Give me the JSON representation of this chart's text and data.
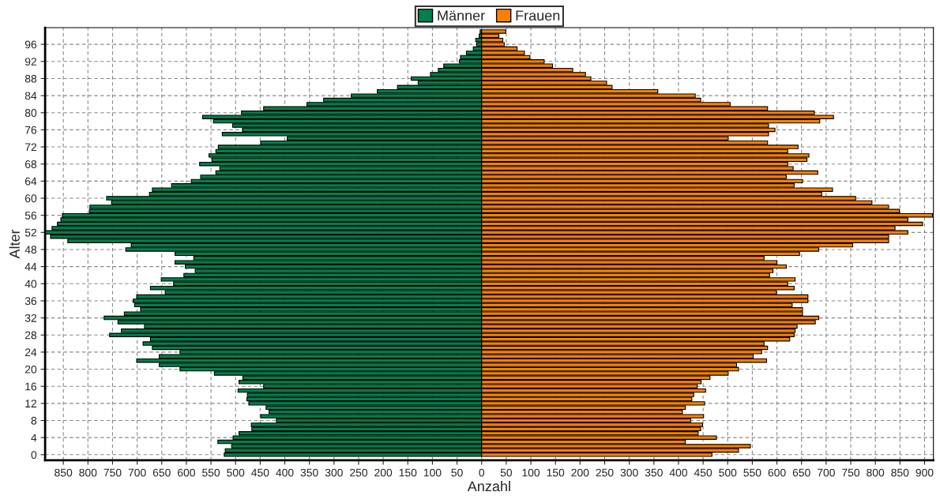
{
  "chart_data": {
    "type": "bar",
    "orientation": "horizontal",
    "xlabel": "Anzahl",
    "ylabel": "Alter",
    "x": [
      0,
      1,
      2,
      3,
      4,
      5,
      6,
      7,
      8,
      9,
      10,
      11,
      12,
      13,
      14,
      15,
      16,
      17,
      18,
      19,
      20,
      21,
      22,
      23,
      24,
      25,
      26,
      27,
      28,
      29,
      30,
      31,
      32,
      33,
      34,
      35,
      36,
      37,
      38,
      39,
      40,
      41,
      42,
      43,
      44,
      45,
      46,
      47,
      48,
      49,
      50,
      51,
      52,
      53,
      54,
      55,
      56,
      57,
      58,
      59,
      60,
      61,
      62,
      63,
      64,
      65,
      66,
      67,
      68,
      69,
      70,
      71,
      72,
      73,
      74,
      75,
      76,
      77,
      78,
      79,
      80,
      81,
      82,
      83,
      84,
      85,
      86,
      87,
      88,
      89,
      90,
      91,
      92,
      93,
      94,
      95,
      96,
      97,
      98,
      99
    ],
    "series": [
      {
        "name": "Männer",
        "color": "#00804a",
        "values": [
          -523,
          -521,
          -508,
          -536,
          -505,
          -493,
          -467,
          -468,
          -417,
          -449,
          -432,
          -438,
          -473,
          -477,
          -476,
          -495,
          -443,
          -493,
          -485,
          -543,
          -613,
          -655,
          -701,
          -655,
          -613,
          -669,
          -688,
          -673,
          -756,
          -732,
          -685,
          -739,
          -767,
          -726,
          -693,
          -705,
          -708,
          -701,
          -643,
          -673,
          -626,
          -651,
          -605,
          -582,
          -602,
          -623,
          -585,
          -623,
          -723,
          -712,
          -841,
          -876,
          -886,
          -873,
          -862,
          -855,
          -852,
          -797,
          -796,
          -752,
          -762,
          -675,
          -669,
          -630,
          -590,
          -571,
          -540,
          -532,
          -573,
          -548,
          -554,
          -540,
          -535,
          -449,
          -395,
          -527,
          -486,
          -506,
          -545,
          -567,
          -488,
          -443,
          -355,
          -321,
          -265,
          -212,
          -171,
          -129,
          -143,
          -104,
          -88,
          -77,
          -45,
          -43,
          -31,
          -17,
          -10,
          -12,
          -5,
          -3
        ]
      },
      {
        "name": "Frauen",
        "color": "#ff8000",
        "values": [
          468,
          522,
          546,
          414,
          477,
          440,
          445,
          449,
          425,
          451,
          408,
          414,
          453,
          427,
          431,
          455,
          438,
          446,
          464,
          501,
          522,
          518,
          579,
          552,
          569,
          581,
          574,
          626,
          635,
          637,
          641,
          678,
          685,
          652,
          652,
          631,
          663,
          663,
          599,
          635,
          622,
          637,
          585,
          592,
          619,
          600,
          574,
          646,
          685,
          754,
          827,
          827,
          866,
          840,
          896,
          866,
          916,
          849,
          827,
          793,
          760,
          691,
          713,
          635,
          652,
          619,
          683,
          633,
          622,
          661,
          665,
          622,
          643,
          581,
          501,
          583,
          596,
          583,
          687,
          715,
          676,
          581,
          505,
          445,
          434,
          358,
          265,
          254,
          222,
          211,
          185,
          144,
          127,
          98,
          87,
          72,
          46,
          43,
          35,
          49
        ]
      }
    ],
    "xlim": [
      -887,
      918
    ],
    "xticks": [
      {
        "value": -850,
        "label": "850"
      },
      {
        "value": -800,
        "label": "800"
      },
      {
        "value": -750,
        "label": "750"
      },
      {
        "value": -700,
        "label": "700"
      },
      {
        "value": -650,
        "label": "650"
      },
      {
        "value": -600,
        "label": "600"
      },
      {
        "value": -550,
        "label": "550"
      },
      {
        "value": -500,
        "label": "500"
      },
      {
        "value": -450,
        "label": "450"
      },
      {
        "value": -400,
        "label": "400"
      },
      {
        "value": -350,
        "label": "350"
      },
      {
        "value": -300,
        "label": "300"
      },
      {
        "value": -250,
        "label": "250"
      },
      {
        "value": -200,
        "label": "200"
      },
      {
        "value": -150,
        "label": "150"
      },
      {
        "value": -100,
        "label": "100"
      },
      {
        "value": -50,
        "label": "50"
      },
      0,
      50,
      100,
      150,
      200,
      250,
      300,
      350,
      400,
      450,
      500,
      550,
      600,
      650,
      700,
      750,
      800,
      850,
      900
    ],
    "ylim": [
      -1.3,
      99.9
    ],
    "yticks": [
      0,
      4,
      8,
      12,
      16,
      20,
      24,
      28,
      32,
      36,
      40,
      44,
      48,
      52,
      56,
      60,
      64,
      68,
      72,
      76,
      80,
      84,
      88,
      92,
      96
    ],
    "grid": true,
    "legend": "top",
    "stacked": true
  }
}
